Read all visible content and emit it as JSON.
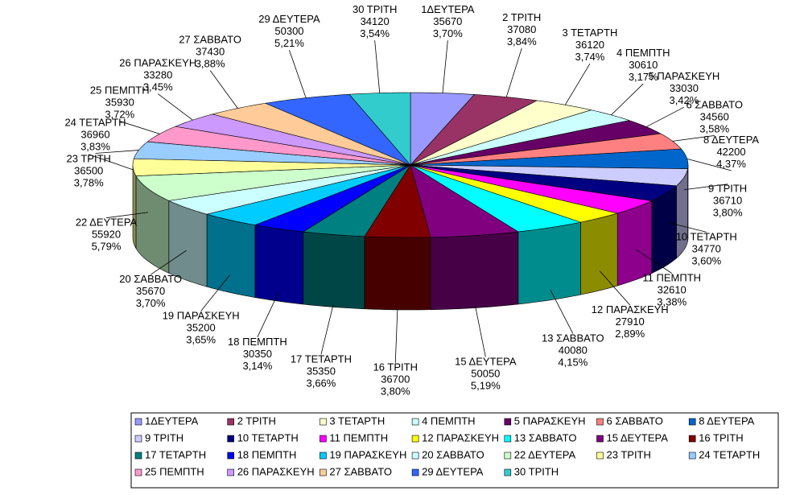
{
  "chart_data": {
    "type": "pie3d",
    "categories": [
      "1ΔΕΥΤΕΡΑ",
      "2 ΤΡΙΤΗ",
      "3 ΤΕΤΑΡΤΗ",
      "4 ΠΕΜΠΤΗ",
      "5 ΠΑΡΑΣΚΕΥΗ",
      "6 ΣΑΒΒΑΤΟ",
      "8 ΔΕΥΤΕΡΑ",
      "9 ΤΡΙΤΗ",
      "10 ΤΕΤΑΡΤΗ",
      "11 ΠΕΜΠΤΗ",
      "12 ΠΑΡΑΣΚΕΥΗ",
      "13 ΣΑΒΒΑΤΟ",
      "15 ΔΕΥΤΕΡΑ",
      "16 ΤΡΙΤΗ",
      "17 ΤΕΤΑΡΤΗ",
      "18 ΠΕΜΠΤΗ",
      "19 ΠΑΡΑΣΚΕΥΗ",
      "20 ΣΑΒΒΑΤΟ",
      "22 ΔΕΥΤΕΡΑ",
      "23 ΤΡΙΤΗ",
      "24 ΤΕΤΑΡΤΗ",
      "25 ΠΕΜΠΤΗ",
      "26 ΠΑΡΑΣΚΕΥΗ",
      "27 ΣΑΒΒΑΤΟ",
      "29 ΔΕΥΤΕΡΑ",
      "30 ΤΡΙΤΗ"
    ],
    "values": [
      35670,
      37080,
      36120,
      30610,
      33030,
      34560,
      42200,
      36710,
      34770,
      32610,
      27910,
      40080,
      50050,
      36700,
      35350,
      30350,
      35200,
      35670,
      55920,
      36500,
      36960,
      35930,
      33280,
      37430,
      50300,
      34120
    ],
    "percents": [
      3.7,
      3.84,
      3.74,
      3.17,
      3.42,
      3.58,
      4.37,
      3.8,
      3.6,
      3.38,
      2.89,
      4.15,
      5.19,
      3.8,
      3.66,
      3.14,
      3.65,
      3.7,
      5.79,
      3.78,
      3.83,
      3.72,
      3.45,
      3.88,
      5.21,
      3.54
    ],
    "percent_labels": [
      "3,70%",
      "3,84%",
      "3,74%",
      "3,17%",
      "3,42%",
      "3,58%",
      "4,37%",
      "3,80%",
      "3,60%",
      "3,38%",
      "2,89%",
      "4,15%",
      "5,19%",
      "3,80%",
      "3,66%",
      "3,14%",
      "3,65%",
      "3,70%",
      "5,79%",
      "3,78%",
      "3,83%",
      "3,72%",
      "3,45%",
      "3,88%",
      "5,21%",
      "3,54%"
    ],
    "colors": [
      "#9999ff",
      "#993366",
      "#ffffcc",
      "#ccffff",
      "#660066",
      "#ff8080",
      "#0066cc",
      "#ccccff",
      "#000080",
      "#ff00ff",
      "#ffff00",
      "#00ffff",
      "#800080",
      "#800000",
      "#008080",
      "#0000ff",
      "#00ccff",
      "#ccffff",
      "#ccffcc",
      "#ffff99",
      "#99ccff",
      "#ff99cc",
      "#cc99ff",
      "#ffcc99",
      "#3366ff",
      "#33cccc"
    ],
    "legend": "bottom"
  }
}
